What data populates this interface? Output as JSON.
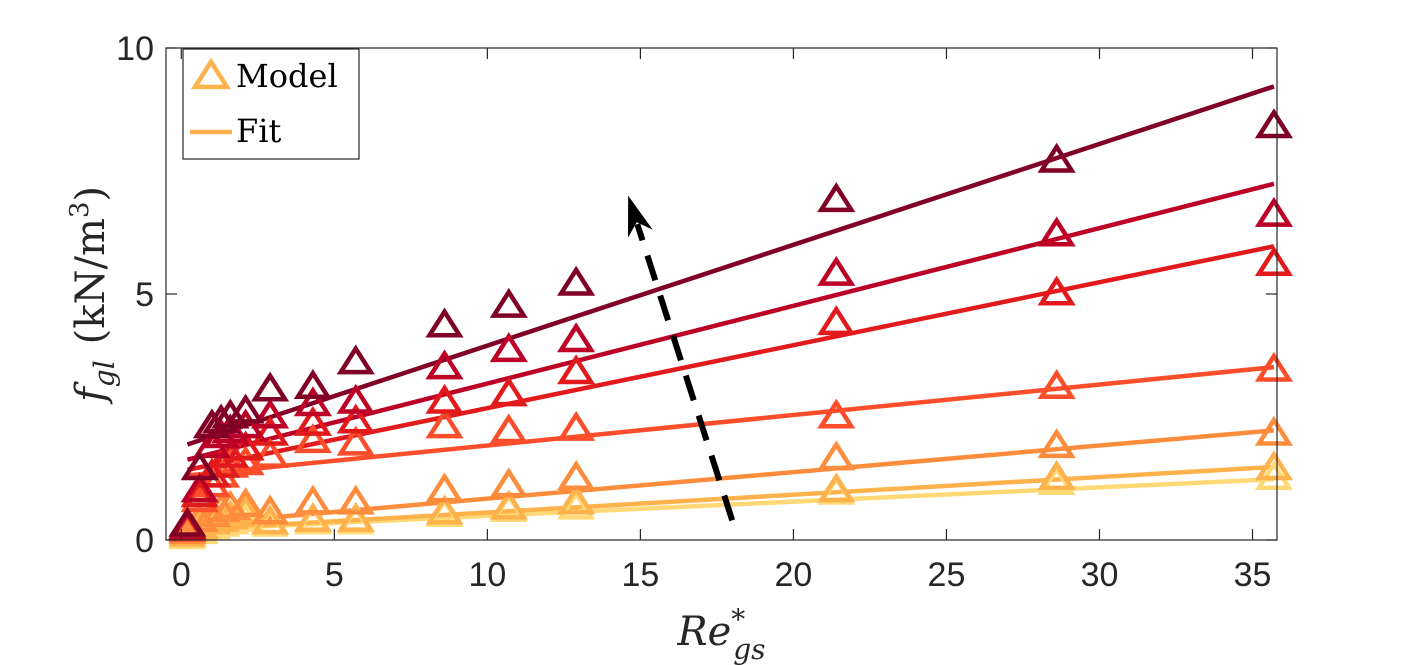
{
  "chart_data": {
    "type": "scatter",
    "title": "",
    "xlabel": "Re*_gs",
    "ylabel": "f_gl (kN/m^3)",
    "xlim": [
      -0.5,
      35.8
    ],
    "ylim": [
      0,
      10
    ],
    "xticks": [
      0,
      5,
      10,
      15,
      20,
      25,
      30,
      35
    ],
    "yticks": [
      0,
      5,
      10
    ],
    "x": [
      0.2,
      0.6,
      1.0,
      1.3,
      1.6,
      2.1,
      2.9,
      4.3,
      5.7,
      8.6,
      10.7,
      12.9,
      21.4,
      28.6,
      35.7
    ],
    "series": [
      {
        "name": "Model",
        "color": "#fed976",
        "model": [
          0.05,
          0.15,
          0.25,
          0.3,
          0.35,
          0.4,
          0.3,
          0.35,
          0.35,
          0.5,
          0.6,
          0.65,
          0.95,
          1.15,
          1.25
        ],
        "fit": {
          "intercept": 0.2,
          "slope": 0.029
        }
      },
      {
        "name": "Model",
        "color": "#feb24c",
        "model": [
          0.1,
          0.25,
          0.35,
          0.4,
          0.45,
          0.55,
          0.35,
          0.4,
          0.4,
          0.55,
          0.65,
          0.75,
          1.0,
          1.25,
          1.45
        ],
        "fit": {
          "intercept": 0.2,
          "slope": 0.036
        }
      },
      {
        "name": "Model",
        "color": "#fd8d3c",
        "model": [
          0.15,
          0.4,
          0.5,
          0.6,
          0.65,
          0.7,
          0.55,
          0.75,
          0.75,
          1.0,
          1.1,
          1.25,
          1.65,
          1.9,
          2.15
        ],
        "fit": {
          "intercept": 0.3,
          "slope": 0.054
        }
      },
      {
        "name": "Model",
        "color": "#fc4e2a",
        "model": [
          0.2,
          0.8,
          1.1,
          1.3,
          1.5,
          1.55,
          1.7,
          2.0,
          1.95,
          2.3,
          2.2,
          2.25,
          2.5,
          3.1,
          3.45
        ],
        "fit": {
          "intercept": 1.3,
          "slope": 0.062
        }
      },
      {
        "name": "Model",
        "color": "#e31a1c",
        "model": [
          0.25,
          0.9,
          1.3,
          1.5,
          1.7,
          1.85,
          2.15,
          2.35,
          2.4,
          2.8,
          2.95,
          3.4,
          4.4,
          5.0,
          5.6
        ],
        "fit": {
          "intercept": 1.4,
          "slope": 0.128
        }
      },
      {
        "name": "Model",
        "color": "#bd0026",
        "model": [
          0.25,
          1.0,
          1.9,
          2.1,
          2.2,
          2.3,
          2.5,
          2.75,
          2.8,
          3.5,
          3.85,
          4.05,
          5.4,
          6.2,
          6.6
        ],
        "fit": {
          "intercept": 1.6,
          "slope": 0.158
        }
      },
      {
        "name": "Model",
        "color": "#800026",
        "model": [
          0.3,
          1.45,
          2.3,
          2.4,
          2.5,
          2.6,
          3.05,
          3.1,
          3.6,
          4.35,
          4.75,
          5.2,
          6.9,
          7.7,
          8.4
        ],
        "fit": {
          "intercept": 1.9,
          "slope": 0.205
        }
      }
    ],
    "annotations": [
      {
        "type": "arrow",
        "style": "dashed",
        "from": [
          18.0,
          0.4
        ],
        "to": [
          14.6,
          7.0
        ],
        "meaning": "increasing parameter direction"
      }
    ],
    "legend": {
      "position": "top-left",
      "entries": [
        {
          "label": "Model",
          "marker": "triangle",
          "color": "#feb24c"
        },
        {
          "label": "Fit",
          "marker": "line",
          "color": "#feb24c"
        }
      ]
    },
    "grid": false
  }
}
